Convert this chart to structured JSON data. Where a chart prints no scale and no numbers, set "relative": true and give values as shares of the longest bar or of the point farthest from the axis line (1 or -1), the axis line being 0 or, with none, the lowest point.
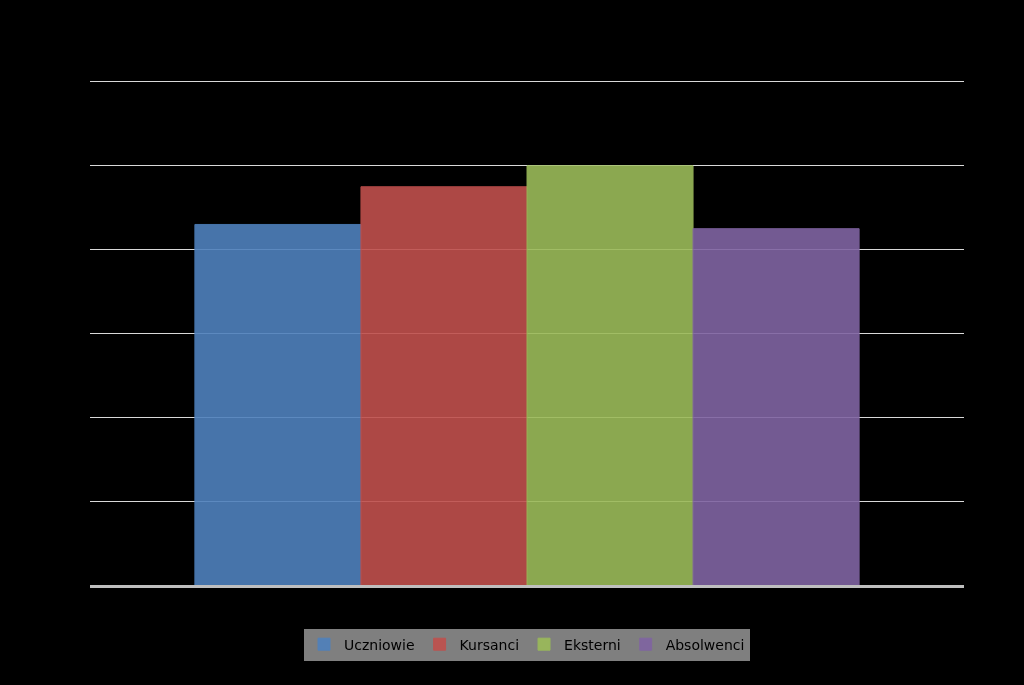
{
  "chart_data": {
    "type": "bar",
    "relative": true,
    "categories": [
      null
    ],
    "series": [
      {
        "name": "Uczniowie",
        "color": "#4f81bd",
        "values": [
          0.86
        ]
      },
      {
        "name": "Kursanci",
        "color": "#c0504d",
        "values": [
          0.95
        ]
      },
      {
        "name": "Eksterni",
        "color": "#9bbb59",
        "values": [
          1
        ]
      },
      {
        "name": "Absolwenci",
        "color": "#8064a2",
        "values": [
          0.85
        ]
      }
    ],
    "grid": "y",
    "legend": "bottom"
  }
}
